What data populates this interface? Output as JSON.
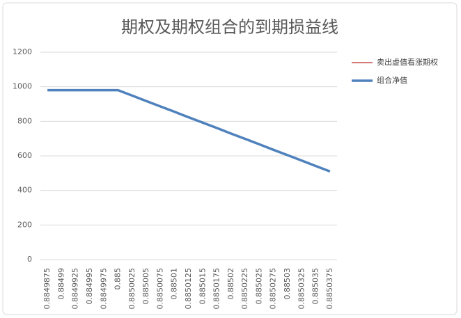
{
  "chart_data": {
    "type": "line",
    "title": "期权及期权组合的到期损益线",
    "categories": [
      "0.8849875",
      "0.88499",
      "0.8849925",
      "0.884995",
      "0.8849975",
      "0.885",
      "0.8850025",
      "0.885005",
      "0.8850075",
      "0.88501",
      "0.8850125",
      "0.885015",
      "0.8850175",
      "0.88502",
      "0.8850225",
      "0.885025",
      "0.8850275",
      "0.88503",
      "0.8850325",
      "0.885035",
      "0.8850375"
    ],
    "series": [
      {
        "name": "卖出虚值看涨期权",
        "color": "#c0504d",
        "values": [
          null,
          null,
          null,
          null,
          null,
          null,
          null,
          null,
          null,
          null,
          null,
          null,
          null,
          null,
          null,
          null,
          null,
          null,
          null,
          null,
          null
        ]
      },
      {
        "name": "组合净值",
        "color": "#4f81bd",
        "values": [
          980,
          980,
          980,
          980,
          980,
          980,
          949,
          917,
          886,
          855,
          823,
          792,
          761,
          729,
          698,
          667,
          635,
          604,
          573,
          541,
          510
        ]
      }
    ],
    "ylim": [
      0,
      1200
    ],
    "yticks": [
      0,
      200,
      400,
      600,
      800,
      1000,
      1200
    ],
    "grid": true
  }
}
